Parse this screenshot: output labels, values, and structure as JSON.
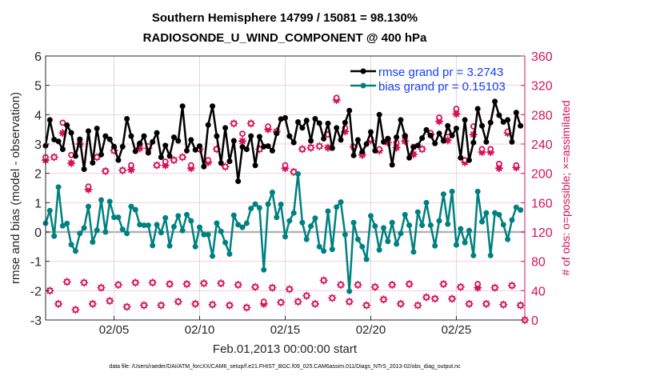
{
  "chart_data": {
    "type": "line",
    "title": "Southern Hemisphere 14799 / 15081 = 98.130%",
    "subtitle": "RADIOSONDE_U_WIND_COMPONENT @ 400 hPa",
    "xlabel": "Feb.01,2013 00:00:00 start",
    "ylabel": "rmse and bias (model - observation)",
    "ylabel_right": "# of obs: o=possible; ×=assimilated",
    "footer": "data file: /Users/raeder/DAI/ATM_forcXX/CAM6_setup/f.e21.FHIST_BGC.f09_025.CAM6assim.011/Diags_NTrS_2013-02/obs_diag_output.nc",
    "x_start_day": 0,
    "x_step_days": 0.25,
    "xlim_days": [
      0,
      28
    ],
    "x_ticks": [
      {
        "day": 4,
        "label": "02/05"
      },
      {
        "day": 9,
        "label": "02/10"
      },
      {
        "day": 14,
        "label": "02/15"
      },
      {
        "day": 19,
        "label": "02/20"
      },
      {
        "day": 24,
        "label": "02/25"
      }
    ],
    "ylim": [
      -3,
      6
    ],
    "y_ticks": [
      "-3",
      "-2",
      "-1",
      "0",
      "1",
      "2",
      "3",
      "4",
      "5",
      "6"
    ],
    "ylim_right": [
      0,
      360
    ],
    "y_ticks_right": [
      "0",
      "40",
      "80",
      "120",
      "160",
      "200",
      "240",
      "280",
      "320",
      "360"
    ],
    "grid": true,
    "legend_position": "top-right",
    "colors": {
      "rmse": "#000000",
      "bias": "#008080",
      "obs": "#d4145a",
      "legend_text": "#1340ff",
      "grid_h": "#f4cfdc",
      "grid_v": "#d9d9d9"
    },
    "series": [
      {
        "name": "rmse",
        "legend": "rmse grand pr = 3.2743",
        "values": [
          2.94,
          3.82,
          3.15,
          3.09,
          2.82,
          3.64,
          3.38,
          2.59,
          3.16,
          2.14,
          3.44,
          2.36,
          3.53,
          2.64,
          3.27,
          3.16,
          2.91,
          2.45,
          2.91,
          3.86,
          3.27,
          2.75,
          3.02,
          3.27,
          2.7,
          3.07,
          3.38,
          2.55,
          2.95,
          2.59,
          3.23,
          3.11,
          4.29,
          2.77,
          3.14,
          2.8,
          2.93,
          2.23,
          3.65,
          4.29,
          3.27,
          2.35,
          3.55,
          2.41,
          3.11,
          1.73,
          2.9,
          2.82,
          3.27,
          2.27,
          3.25,
          2.91,
          2.93,
          2.77,
          3.36,
          3.85,
          3.89,
          3.27,
          3.05,
          3.75,
          3.55,
          3.8,
          3.11,
          3.86,
          3.71,
          3.18,
          3.7,
          2.86,
          3.55,
          3.14,
          3.73,
          4.14,
          2.61,
          3.14,
          2.73,
          3.0,
          3.41,
          2.77,
          4.0,
          3.07,
          3.18,
          2.29,
          3.23,
          3.82,
          3.27,
          2.53,
          2.89,
          2.95,
          3.2,
          3.48,
          3.29,
          3.02,
          3.36,
          3.11,
          3.62,
          3.29,
          3.53,
          2.53,
          3.82,
          2.45,
          3.05,
          4.2,
          3.62,
          3.07,
          3.73,
          4.45,
          3.98,
          3.75,
          3.82,
          3.07,
          4.07,
          3.62
        ]
      },
      {
        "name": "bias",
        "legend": "bias grand pr = 0.15103",
        "values": [
          0.3,
          0.73,
          -0.14,
          1.53,
          0.21,
          0.29,
          -0.43,
          -0.65,
          -0.05,
          0.14,
          0.87,
          -0.34,
          0.06,
          1.09,
          0.0,
          1.04,
          0.5,
          0.5,
          0.09,
          -0.05,
          0.87,
          0.76,
          0.25,
          0.23,
          0.23,
          -0.46,
          0.25,
          -0.02,
          0.48,
          -0.47,
          0.18,
          0.55,
          0.05,
          0.59,
          0.38,
          -0.5,
          0.16,
          -0.09,
          -0.09,
          -0.82,
          0.3,
          0.02,
          -0.36,
          -0.75,
          0.57,
          0.25,
          0.16,
          0.3,
          0.8,
          0.95,
          0.82,
          -1.29,
          0.95,
          1.35,
          0.5,
          0.94,
          -0.16,
          0.38,
          0.65,
          1.98,
          0.32,
          -0.25,
          0.2,
          0.47,
          -0.5,
          -0.65,
          0.71,
          -0.59,
          0.85,
          1.02,
          -0.09,
          -2.02,
          0.32,
          -0.25,
          -0.5,
          -0.93,
          0.55,
          0.2,
          -0.61,
          0.14,
          -0.32,
          0.32,
          -0.41,
          -0.05,
          0.59,
          0.23,
          -0.68,
          0.68,
          0.23,
          1.0,
          0.23,
          -0.47,
          0.38,
          1.29,
          0.27,
          1.38,
          -0.44,
          0.11,
          -0.36,
          0.05,
          -0.8,
          1.38,
          0.35,
          0.65,
          -0.8,
          0.65,
          0.59,
          0.25,
          -0.25,
          0.41,
          0.84,
          0.75
        ]
      },
      {
        "name": "obs_possible",
        "axis": "right",
        "values": [
          222,
          40,
          222,
          22,
          269,
          52,
          225,
          14,
          240,
          51,
          182,
          22,
          222,
          44,
          203,
          26,
          231,
          48,
          204,
          18,
          211,
          51,
          239,
          20,
          237,
          51,
          211,
          20,
          216,
          49,
          218,
          25,
          222,
          49,
          211,
          22,
          233,
          50,
          218,
          21,
          233,
          50,
          209,
          20,
          268,
          48,
          254,
          17,
          268,
          45,
          233,
          25,
          264,
          44,
          257,
          24,
          211,
          42,
          202,
          25,
          233,
          33,
          235,
          22,
          237,
          54,
          253,
          30,
          303,
          48,
          262,
          25,
          236,
          48,
          227,
          20,
          247,
          45,
          233,
          28,
          247,
          48,
          242,
          22,
          251,
          49,
          236,
          20,
          233,
          31,
          255,
          29,
          276,
          49,
          256,
          29,
          288,
          45,
          218,
          22,
          264,
          49,
          233,
          22,
          233,
          44,
          213,
          21,
          257,
          47,
          211,
          20,
          0
        ]
      },
      {
        "name": "obs_assimilated",
        "axis": "right",
        "values": [
          218,
          40,
          222,
          22,
          255,
          52,
          214,
          14,
          240,
          51,
          178,
          22,
          222,
          44,
          203,
          26,
          231,
          48,
          204,
          18,
          205,
          51,
          234,
          20,
          234,
          51,
          211,
          20,
          211,
          49,
          218,
          25,
          222,
          49,
          207,
          22,
          233,
          50,
          215,
          21,
          233,
          50,
          209,
          20,
          268,
          48,
          244,
          17,
          268,
          45,
          233,
          22,
          260,
          44,
          257,
          24,
          207,
          42,
          202,
          25,
          233,
          33,
          235,
          22,
          237,
          54,
          235,
          30,
          300,
          48,
          257,
          25,
          236,
          48,
          225,
          20,
          245,
          45,
          231,
          28,
          242,
          48,
          235,
          22,
          244,
          49,
          226,
          20,
          233,
          31,
          253,
          29,
          271,
          49,
          245,
          29,
          281,
          45,
          215,
          22,
          253,
          44,
          229,
          22,
          229,
          44,
          207,
          21,
          255,
          47,
          208,
          20,
          0
        ]
      }
    ]
  }
}
